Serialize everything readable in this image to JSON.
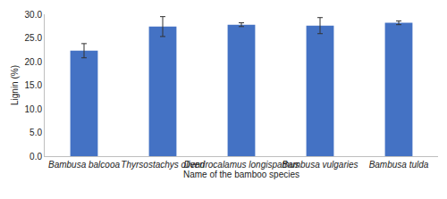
{
  "chart_data": {
    "type": "bar",
    "categories": [
      "Bambusa balcooa",
      "Thyrsostachys oliveri",
      "Dendrocalamus longispathus",
      "Bambusa vulgaries",
      "Bambusa tulda"
    ],
    "values": [
      22.3,
      27.4,
      27.8,
      27.6,
      28.2
    ],
    "errors": [
      1.5,
      2.1,
      0.4,
      1.7,
      0.4
    ],
    "color": "#4472c4",
    "xlabel": "Name of the bamboo species",
    "ylabel": "Lignin (%)",
    "ylim": [
      0,
      30
    ],
    "yticks": [
      {
        "value": 0,
        "label": "0.0"
      },
      {
        "value": 5,
        "label": "5.0"
      },
      {
        "value": 10,
        "label": "10.0"
      },
      {
        "value": 15,
        "label": "15.0"
      },
      {
        "value": 20,
        "label": "20.0"
      },
      {
        "value": 25,
        "label": "25.0"
      },
      {
        "value": 30,
        "label": "30.0"
      }
    ],
    "grid": false
  }
}
